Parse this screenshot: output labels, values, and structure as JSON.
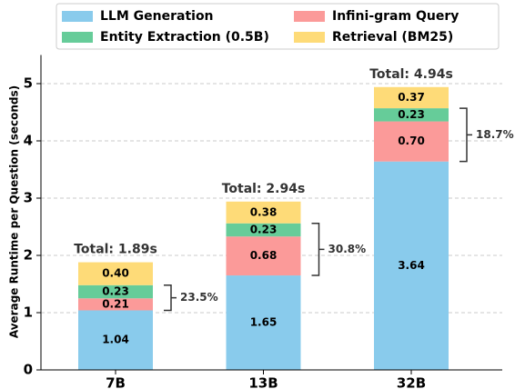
{
  "chart_data": {
    "type": "stacked_bar",
    "y_label": "Average Runtime per Question (seconds)",
    "categories": [
      "7B",
      "13B",
      "32B"
    ],
    "series": [
      {
        "name": "LLM Generation",
        "color": "#89cbec",
        "values": [
          1.04,
          1.65,
          3.64
        ],
        "value_labels": [
          "1.04",
          "1.65",
          "3.64"
        ]
      },
      {
        "name": "Infini-gram Query",
        "color": "#fb9a99",
        "values": [
          0.21,
          0.68,
          0.7
        ],
        "value_labels": [
          "0.21",
          "0.68",
          "0.70"
        ]
      },
      {
        "name": "Entity Extraction (0.5B)",
        "color": "#66cc99",
        "values": [
          0.23,
          0.23,
          0.23
        ],
        "value_labels": [
          "0.23",
          "0.23",
          "0.23"
        ]
      },
      {
        "name": "Retrieval (BM25)",
        "color": "#fedb78",
        "values": [
          0.4,
          0.38,
          0.37
        ],
        "value_labels": [
          "0.40",
          "0.38",
          "0.37"
        ]
      }
    ],
    "totals": [
      "Total: 1.89s",
      "Total: 2.94s",
      "Total: 4.94s"
    ],
    "shares": [
      "23.5%",
      "30.8%",
      "18.7%"
    ],
    "ylim": [
      0,
      5.5
    ],
    "yticks": [
      0,
      1,
      2,
      3,
      4,
      5
    ],
    "grid": true
  }
}
